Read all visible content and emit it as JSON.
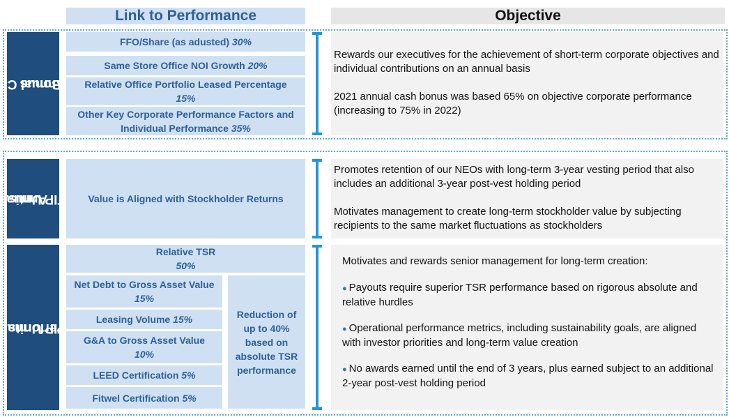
{
  "headers": {
    "link": "Link to Performance",
    "objective": "Objective"
  },
  "bonus": {
    "side_line1": "Annual Cash",
    "side_line2": "Bonus",
    "items": [
      {
        "label": "FFO/Share (as adusted)",
        "pct": "30%"
      },
      {
        "label": "Same Store Office NOI Growth",
        "pct": "20%"
      },
      {
        "label": "Relative Office Portfolio Leased Percentage",
        "pct": "15%"
      },
      {
        "label": "Other Key Corporate Performance Factors and Individual Performance",
        "pct": "35%"
      }
    ],
    "objective": [
      "Rewards our executives for the achievement of short-term corporate objectives and individual contributions on an annual basis",
      "2021 annual cash bonus was based 65% on objective corporate performance (increasing to 75% in 2022)"
    ]
  },
  "ltip": {
    "side_line1": "Annual",
    "side_line2": "LTIP Untis",
    "link": "Value is Aligned with Stockholder Returns",
    "objective": [
      "Promotes retention of our NEOs with long-term 3-year vesting period that also includes an additional 3-year post-vest holding period",
      "Motivates management to create long-term stockholder value by subjecting recipients to the same market fluctuations as stockholders"
    ]
  },
  "perf": {
    "side_line1": "Performance",
    "side_line2": "LTIP Units",
    "tsr": {
      "label": "Relative TSR",
      "pct": "50%"
    },
    "items": [
      {
        "label": "Net Debt to Gross Asset Value",
        "pct": "15%"
      },
      {
        "label": "Leasing Volume",
        "pct": "15%"
      },
      {
        "label": "G&A to Gross Asset Value",
        "pct": "10%"
      },
      {
        "label": "LEED Certification",
        "pct": "5%"
      },
      {
        "label": "Fitwel Certification",
        "pct": "5%"
      }
    ],
    "reduction": "Reduction of up to 40% based on absolute TSR performance",
    "objective_intro": "Motivates and rewards senior management for long-term creation:",
    "bullet_symbol": "●",
    "bullets": [
      "Payouts require superior TSR performance based on rigorous absolute and relative hurdles",
      "Operational performance metrics, including sustainability goals,  are aligned with investor priorities and long-term value creation",
      "No awards earned until the end of 3 years, plus earned subject to an additional 2-year post-vest holding period"
    ]
  }
}
